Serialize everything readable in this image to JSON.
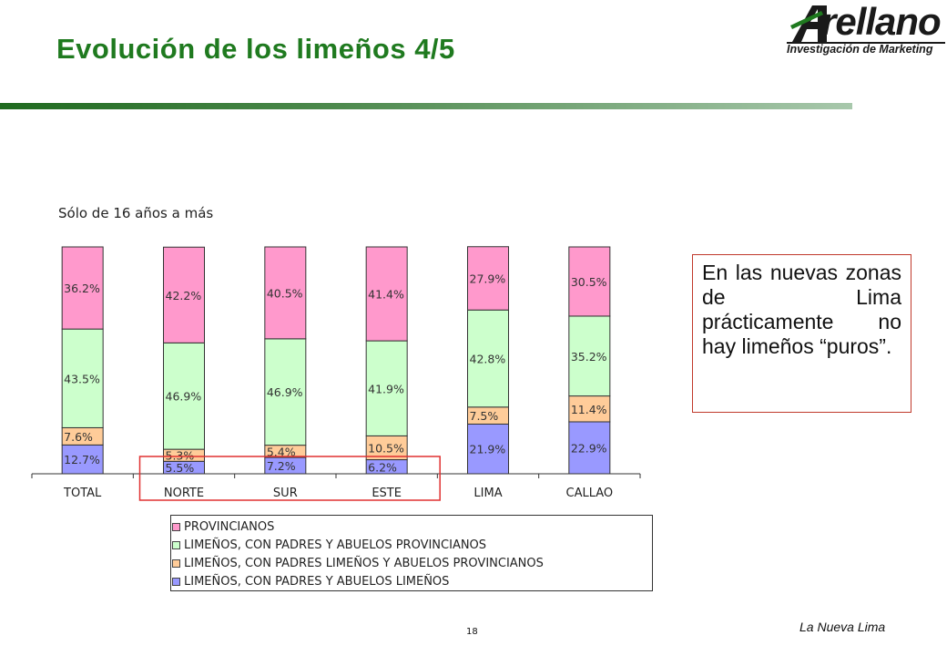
{
  "slide": {
    "title": "Evolución de los limeños 4/5",
    "subtitle": "Sólo de 16 años a más",
    "callout": "En las nuevas zonas de Lima prácticamente no hay limeños “puros”.",
    "footer": "La Nueva Lima",
    "page_number": "18"
  },
  "logo": {
    "word": "rellano",
    "tagline": "Investigación de Marketing",
    "icon": "arellano-a-logo-icon"
  },
  "colors": {
    "title": "#1f7a1f",
    "highlight_border": "#e03030"
  },
  "chart_data": {
    "type": "bar",
    "stacked": true,
    "categories": [
      "TOTAL",
      "NORTE",
      "SUR",
      "ESTE",
      "LIMA",
      "CALLAO"
    ],
    "series": [
      {
        "name": "LIMEÑOS, CON PADRES Y ABUELOS LIMEÑOS",
        "color": "#9999ff",
        "values": [
          12.7,
          5.5,
          7.2,
          6.2,
          21.9,
          22.9
        ],
        "labels": [
          "12.7%",
          "5.5%",
          "7.2%",
          "6.2%",
          "21.9%",
          "22.9%"
        ]
      },
      {
        "name": "LIMEÑOS, CON PADRES LIMEÑOS Y ABUELOS PROVINCIANOS",
        "color": "#ffcc99",
        "values": [
          7.6,
          5.3,
          5.4,
          10.5,
          7.5,
          11.4
        ],
        "labels": [
          "7.6%",
          "5.3%",
          "5.4%",
          "10.5%",
          "7.5%",
          "11.4%"
        ]
      },
      {
        "name": "LIMEÑOS, CON PADRES Y ABUELOS PROVINCIANOS",
        "color": "#ccffcc",
        "values": [
          43.5,
          46.9,
          46.9,
          41.9,
          42.8,
          35.2
        ],
        "labels": [
          "43.5%",
          "46.9%",
          "46.9%",
          "41.9%",
          "42.8%",
          "35.2%"
        ]
      },
      {
        "name": "PROVINCIANOS",
        "color": "#ff99cc",
        "values": [
          36.2,
          42.2,
          40.5,
          41.4,
          27.9,
          30.5
        ],
        "labels": [
          "36.2%",
          "42.2%",
          "40.5%",
          "41.4%",
          "27.9%",
          "30.5%"
        ]
      }
    ],
    "legend_order": [
      "PROVINCIANOS",
      "LIMEÑOS, CON PADRES Y ABUELOS PROVINCIANOS",
      "LIMEÑOS, CON PADRES LIMEÑOS Y ABUELOS PROVINCIANOS",
      "LIMEÑOS, CON PADRES Y ABUELOS LIMEÑOS"
    ],
    "legend_position": "bottom",
    "highlighted_categories": [
      "NORTE",
      "SUR",
      "ESTE"
    ],
    "ylim": [
      0,
      100
    ],
    "grid": false
  }
}
